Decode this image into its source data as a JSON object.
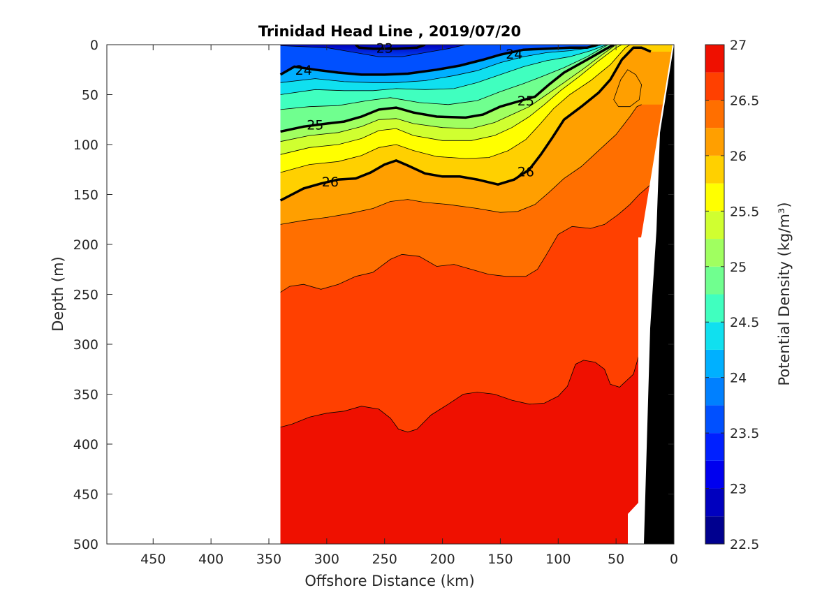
{
  "chart_data": {
    "type": "heatmap",
    "title": "Trinidad Head Line , 2019/07/20",
    "xlabel": "Offshore Distance (km)",
    "ylabel": "Depth (m)",
    "xlim": [
      490,
      0
    ],
    "ylim": [
      0,
      500
    ],
    "x_reversed": true,
    "y_reversed": true,
    "xticks": [
      450,
      400,
      350,
      300,
      250,
      200,
      150,
      100,
      50,
      0
    ],
    "yticks": [
      0,
      50,
      100,
      150,
      200,
      250,
      300,
      350,
      400,
      450,
      500
    ],
    "colorbar": {
      "label": "Potential Density (kg/m³)",
      "range": [
        22.5,
        27
      ],
      "ticks": [
        22.5,
        23,
        23.5,
        24,
        24.5,
        25,
        25.5,
        26,
        26.5,
        27
      ],
      "levels": [
        22.5,
        22.75,
        23,
        23.25,
        23.5,
        23.75,
        24,
        24.25,
        24.5,
        24.75,
        25,
        25.25,
        25.5,
        25.75,
        26,
        26.25,
        26.5,
        26.75,
        27
      ],
      "colors": [
        "#00008f",
        "#0000bf",
        "#0000ef",
        "#0020ff",
        "#0050ff",
        "#0080ff",
        "#00b0ff",
        "#10e0ef",
        "#40ffbf",
        "#70ff8f",
        "#a0ff60",
        "#d0ff30",
        "#ffff00",
        "#ffd000",
        "#ff9f00",
        "#ff6f00",
        "#ff4000",
        "#ef1000",
        "#bf0000",
        "#af0000"
      ]
    },
    "section_x_range": [
      340,
      0
    ],
    "contour_labels": [
      23,
      24,
      24,
      25,
      25,
      26,
      26
    ],
    "bold_contours": [
      {
        "level": 23,
        "points": [
          [
            275,
            0
          ],
          [
            272,
            3
          ],
          [
            260,
            4
          ],
          [
            240,
            4
          ],
          [
            222,
            3
          ],
          [
            215,
            0
          ]
        ]
      },
      {
        "level": 24,
        "points": [
          [
            340,
            30
          ],
          [
            328,
            22
          ],
          [
            310,
            25
          ],
          [
            290,
            28
          ],
          [
            270,
            30
          ],
          [
            250,
            30
          ],
          [
            230,
            29
          ],
          [
            205,
            25
          ],
          [
            185,
            21
          ],
          [
            165,
            15
          ],
          [
            150,
            10
          ],
          [
            130,
            5
          ],
          [
            110,
            4
          ],
          [
            90,
            3
          ],
          [
            75,
            3
          ],
          [
            66,
            0
          ]
        ]
      },
      {
        "level": 25,
        "points": [
          [
            340,
            87
          ],
          [
            320,
            82
          ],
          [
            300,
            79
          ],
          [
            285,
            77
          ],
          [
            270,
            72
          ],
          [
            255,
            65
          ],
          [
            240,
            63
          ],
          [
            225,
            68
          ],
          [
            205,
            72
          ],
          [
            180,
            73
          ],
          [
            165,
            70
          ],
          [
            150,
            62
          ],
          [
            135,
            57
          ],
          [
            120,
            52
          ],
          [
            108,
            40
          ],
          [
            95,
            28
          ],
          [
            75,
            15
          ],
          [
            60,
            5
          ],
          [
            52,
            0
          ]
        ]
      },
      {
        "level": 26,
        "points": [
          [
            340,
            156
          ],
          [
            330,
            150
          ],
          [
            320,
            144
          ],
          [
            305,
            139
          ],
          [
            290,
            135
          ],
          [
            275,
            134
          ],
          [
            262,
            128
          ],
          [
            250,
            120
          ],
          [
            240,
            116
          ],
          [
            230,
            121
          ],
          [
            215,
            129
          ],
          [
            200,
            132
          ],
          [
            185,
            132
          ],
          [
            170,
            135
          ],
          [
            152,
            140
          ],
          [
            138,
            135
          ],
          [
            125,
            125
          ],
          [
            115,
            110
          ],
          [
            105,
            93
          ],
          [
            95,
            75
          ],
          [
            80,
            62
          ],
          [
            65,
            48
          ],
          [
            55,
            35
          ],
          [
            45,
            15
          ],
          [
            35,
            3
          ],
          [
            28,
            3
          ],
          [
            20,
            7
          ]
        ]
      }
    ],
    "isopycnals": [
      {
        "level": 23.5,
        "points": [
          [
            340,
            1
          ],
          [
            300,
            3
          ],
          [
            275,
            8
          ],
          [
            255,
            12
          ],
          [
            235,
            12
          ],
          [
            215,
            8
          ],
          [
            195,
            4
          ],
          [
            180,
            0
          ]
        ]
      },
      {
        "level": 24.25,
        "points": [
          [
            340,
            38
          ],
          [
            310,
            34
          ],
          [
            285,
            37
          ],
          [
            260,
            38
          ],
          [
            240,
            38
          ],
          [
            215,
            36
          ],
          [
            190,
            31
          ],
          [
            170,
            26
          ],
          [
            150,
            18
          ],
          [
            130,
            12
          ],
          [
            110,
            8
          ],
          [
            90,
            6
          ],
          [
            72,
            3
          ],
          [
            62,
            0
          ]
        ]
      },
      {
        "level": 24.5,
        "points": [
          [
            340,
            50
          ],
          [
            310,
            45
          ],
          [
            285,
            46
          ],
          [
            260,
            46
          ],
          [
            240,
            44
          ],
          [
            215,
            45
          ],
          [
            190,
            44
          ],
          [
            170,
            38
          ],
          [
            150,
            30
          ],
          [
            130,
            22
          ],
          [
            110,
            16
          ],
          [
            90,
            12
          ],
          [
            72,
            6
          ],
          [
            58,
            0
          ]
        ]
      },
      {
        "level": 24.75,
        "points": [
          [
            340,
            65
          ],
          [
            315,
            62
          ],
          [
            290,
            61
          ],
          [
            265,
            56
          ],
          [
            245,
            53
          ],
          [
            220,
            58
          ],
          [
            195,
            60
          ],
          [
            170,
            56
          ],
          [
            150,
            47
          ],
          [
            130,
            39
          ],
          [
            112,
            31
          ],
          [
            95,
            23
          ],
          [
            75,
            12
          ],
          [
            57,
            0
          ]
        ]
      },
      {
        "level": 25.25,
        "points": [
          [
            340,
            97
          ],
          [
            315,
            91
          ],
          [
            290,
            88
          ],
          [
            270,
            82
          ],
          [
            255,
            75
          ],
          [
            240,
            74
          ],
          [
            225,
            79
          ],
          [
            200,
            83
          ],
          [
            175,
            84
          ],
          [
            155,
            78
          ],
          [
            140,
            70
          ],
          [
            125,
            62
          ],
          [
            110,
            50
          ],
          [
            95,
            38
          ],
          [
            78,
            24
          ],
          [
            62,
            10
          ],
          [
            50,
            0
          ]
        ]
      },
      {
        "level": 25.5,
        "points": [
          [
            340,
            110
          ],
          [
            315,
            103
          ],
          [
            290,
            100
          ],
          [
            270,
            94
          ],
          [
            255,
            86
          ],
          [
            240,
            84
          ],
          [
            225,
            91
          ],
          [
            200,
            96
          ],
          [
            175,
            96
          ],
          [
            155,
            91
          ],
          [
            140,
            83
          ],
          [
            125,
            72
          ],
          [
            112,
            60
          ],
          [
            98,
            46
          ],
          [
            82,
            32
          ],
          [
            66,
            17
          ],
          [
            50,
            3
          ],
          [
            45,
            0
          ]
        ]
      },
      {
        "level": 25.75,
        "points": [
          [
            340,
            128
          ],
          [
            315,
            120
          ],
          [
            290,
            117
          ],
          [
            270,
            111
          ],
          [
            255,
            103
          ],
          [
            240,
            100
          ],
          [
            225,
            106
          ],
          [
            205,
            112
          ],
          [
            180,
            114
          ],
          [
            160,
            113
          ],
          [
            143,
            106
          ],
          [
            128,
            95
          ],
          [
            116,
            80
          ],
          [
            104,
            64
          ],
          [
            90,
            50
          ],
          [
            72,
            36
          ],
          [
            55,
            20
          ],
          [
            42,
            3
          ],
          [
            38,
            0
          ]
        ]
      },
      {
        "level": 26.25,
        "points": [
          [
            340,
            180
          ],
          [
            320,
            176
          ],
          [
            300,
            173
          ],
          [
            280,
            169
          ],
          [
            260,
            164
          ],
          [
            245,
            157
          ],
          [
            230,
            155
          ],
          [
            215,
            158
          ],
          [
            195,
            160
          ],
          [
            170,
            164
          ],
          [
            150,
            168
          ],
          [
            135,
            167
          ],
          [
            120,
            160
          ],
          [
            108,
            148
          ],
          [
            95,
            134
          ],
          [
            80,
            122
          ],
          [
            65,
            106
          ],
          [
            50,
            90
          ],
          [
            38,
            72
          ],
          [
            32,
            62
          ],
          [
            28,
            60
          ]
        ]
      },
      {
        "level": 26.5,
        "points": [
          [
            340,
            248
          ],
          [
            332,
            242
          ],
          [
            320,
            240
          ],
          [
            305,
            245
          ],
          [
            290,
            240
          ],
          [
            275,
            232
          ],
          [
            260,
            228
          ],
          [
            245,
            215
          ],
          [
            235,
            210
          ],
          [
            220,
            212
          ],
          [
            205,
            222
          ],
          [
            190,
            220
          ],
          [
            175,
            225
          ],
          [
            160,
            230
          ],
          [
            145,
            232
          ],
          [
            128,
            232
          ],
          [
            118,
            225
          ],
          [
            110,
            210
          ],
          [
            100,
            190
          ],
          [
            88,
            182
          ],
          [
            72,
            184
          ],
          [
            60,
            180
          ],
          [
            48,
            170
          ],
          [
            38,
            160
          ],
          [
            30,
            150
          ],
          [
            20,
            140
          ]
        ]
      },
      {
        "level": 26.75,
        "points": [
          [
            340,
            383
          ],
          [
            330,
            380
          ],
          [
            315,
            373
          ],
          [
            300,
            369
          ],
          [
            285,
            367
          ],
          [
            270,
            362
          ],
          [
            255,
            365
          ],
          [
            245,
            374
          ],
          [
            238,
            385
          ],
          [
            230,
            388
          ],
          [
            222,
            385
          ],
          [
            210,
            371
          ],
          [
            195,
            360
          ],
          [
            182,
            350
          ],
          [
            170,
            348
          ],
          [
            155,
            350
          ],
          [
            140,
            356
          ],
          [
            125,
            360
          ],
          [
            112,
            359
          ],
          [
            100,
            352
          ],
          [
            92,
            342
          ],
          [
            85,
            320
          ],
          [
            78,
            316
          ],
          [
            68,
            318
          ],
          [
            60,
            325
          ],
          [
            55,
            340
          ],
          [
            47,
            343
          ],
          [
            35,
            330
          ],
          [
            30,
            310
          ],
          [
            25,
            290
          ],
          [
            18,
            280
          ]
        ]
      },
      {
        "level": 26.5,
        "points": [
          [
            48,
            62
          ],
          [
            52,
            55
          ],
          [
            46,
            35
          ],
          [
            40,
            25
          ],
          [
            33,
            30
          ],
          [
            28,
            40
          ],
          [
            30,
            55
          ],
          [
            38,
            62
          ],
          [
            48,
            62
          ]
        ]
      }
    ],
    "label_positions": [
      {
        "text": "23",
        "x": 250,
        "y": 3
      },
      {
        "text": "24",
        "x": 320,
        "y": 25
      },
      {
        "text": "24",
        "x": 138,
        "y": 9
      },
      {
        "text": "25",
        "x": 310,
        "y": 80
      },
      {
        "text": "25",
        "x": 128,
        "y": 56
      },
      {
        "text": "26",
        "x": 297,
        "y": 137
      },
      {
        "text": "26",
        "x": 128,
        "y": 127
      }
    ]
  }
}
